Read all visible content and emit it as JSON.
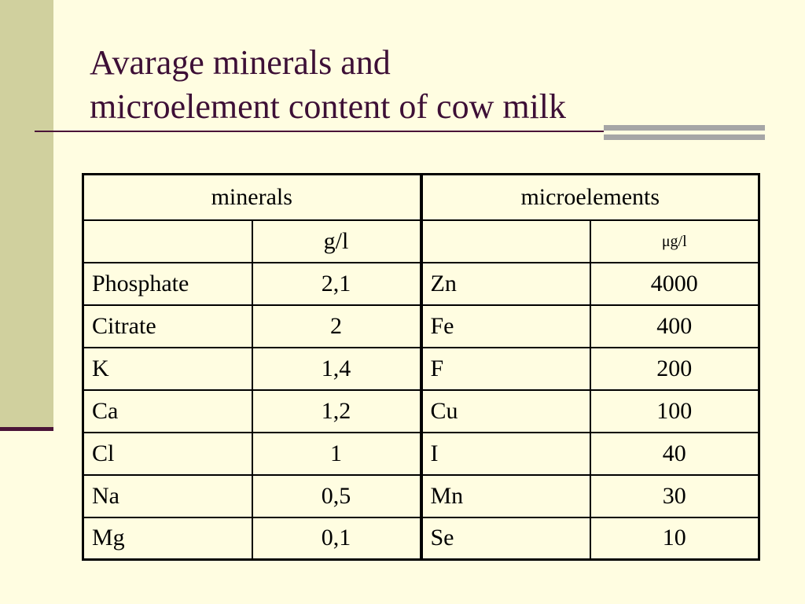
{
  "title": {
    "line1": "Avarage minerals and",
    "line2": "microelement content of cow milk"
  },
  "table": {
    "minerals_header": "minerals",
    "microelements_header": "microelements",
    "minerals_unit": "g/l",
    "microelements_unit": "μg/l",
    "minerals": [
      {
        "name": "Phosphate",
        "value": "2,1"
      },
      {
        "name": "Citrate",
        "value": "2"
      },
      {
        "name": "K",
        "value": "1,4"
      },
      {
        "name": "Ca",
        "value": "1,2"
      },
      {
        "name": "Cl",
        "value": "1"
      },
      {
        "name": "Na",
        "value": "0,5"
      },
      {
        "name": "Mg",
        "value": "0,1"
      }
    ],
    "microelements": [
      {
        "name": "Zn",
        "value": "4000"
      },
      {
        "name": "Fe",
        "value": "400"
      },
      {
        "name": "F",
        "value": "200"
      },
      {
        "name": "Cu",
        "value": "100"
      },
      {
        "name": "I",
        "value": "40"
      },
      {
        "name": "Mn",
        "value": "30"
      },
      {
        "name": "Se",
        "value": "10"
      }
    ]
  },
  "colors": {
    "background": "#FFFDE1",
    "side_band": "#D0D09E",
    "title_text": "#3D0F36",
    "accent_rule": "#4A1438",
    "accent_gray": "#A6A6A6"
  }
}
